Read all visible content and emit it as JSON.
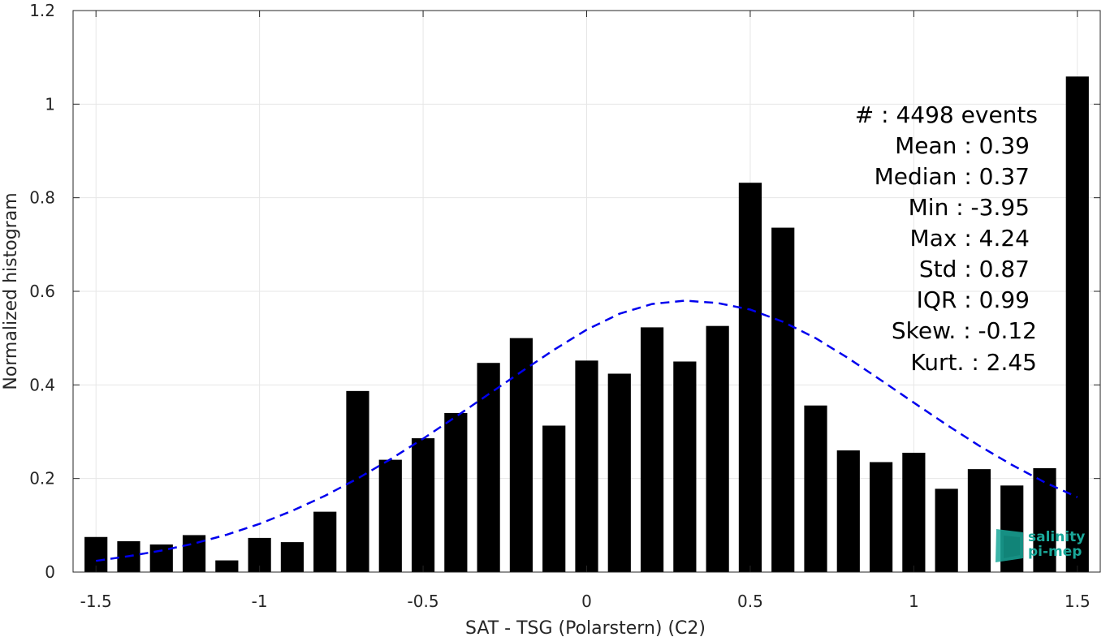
{
  "chart_data": {
    "type": "bar",
    "xlabel": "SAT - TSG (Polarstern) (C2)",
    "ylabel": "Normalized histogram",
    "xlim": [
      -1.57,
      1.57
    ],
    "ylim": [
      0,
      1.2
    ],
    "x_ticks": [
      -1.5,
      -1,
      -0.5,
      0,
      0.5,
      1,
      1.5
    ],
    "x_tick_labels": [
      "-1.5",
      "-1",
      "-0.5",
      "0",
      "0.5",
      "1",
      "1.5"
    ],
    "y_ticks": [
      0,
      0.2,
      0.4,
      0.6,
      0.8,
      1,
      1.2
    ],
    "y_tick_labels": [
      "0",
      "0.2",
      "0.4",
      "0.6",
      "0.8",
      "1",
      "1.2"
    ],
    "grid": true,
    "bar_width": 0.07,
    "bars": {
      "x": [
        -1.5,
        -1.4,
        -1.3,
        -1.2,
        -1.1,
        -1.0,
        -0.9,
        -0.8,
        -0.7,
        -0.6,
        -0.5,
        -0.4,
        -0.3,
        -0.2,
        -0.1,
        0.0,
        0.1,
        0.2,
        0.3,
        0.4,
        0.5,
        0.6,
        0.7,
        0.8,
        0.9,
        1.0,
        1.1,
        1.2,
        1.3,
        1.4,
        1.5
      ],
      "values": [
        0.075,
        0.066,
        0.059,
        0.079,
        0.025,
        0.073,
        0.064,
        0.129,
        0.387,
        0.24,
        0.286,
        0.34,
        0.447,
        0.5,
        0.313,
        0.452,
        0.424,
        0.523,
        0.45,
        0.526,
        0.832,
        0.736,
        0.356,
        0.26,
        0.235,
        0.255,
        0.178,
        0.22,
        0.185,
        0.222,
        1.059
      ],
      "color": "#000000"
    },
    "fit_curve": {
      "style": "dashed",
      "color": "#0000ee",
      "x": [
        -1.5,
        -1.4,
        -1.3,
        -1.2,
        -1.1,
        -1.0,
        -0.9,
        -0.8,
        -0.7,
        -0.6,
        -0.5,
        -0.4,
        -0.3,
        -0.2,
        -0.1,
        0.0,
        0.1,
        0.2,
        0.3,
        0.4,
        0.5,
        0.6,
        0.7,
        0.8,
        0.9,
        1.0,
        1.1,
        1.2,
        1.3,
        1.4,
        1.5
      ],
      "y": [
        0.024,
        0.034,
        0.046,
        0.061,
        0.08,
        0.103,
        0.131,
        0.163,
        0.2,
        0.241,
        0.285,
        0.332,
        0.38,
        0.428,
        0.475,
        0.518,
        0.552,
        0.573,
        0.58,
        0.575,
        0.561,
        0.535,
        0.5,
        0.457,
        0.41,
        0.362,
        0.315,
        0.27,
        0.229,
        0.192,
        0.16
      ]
    }
  },
  "stats": [
    {
      "text": "#  : 4498 events"
    },
    {
      "text": "Mean : 0.39"
    },
    {
      "text": "Median : 0.37"
    },
    {
      "text": "Min : -3.95"
    },
    {
      "text": "Max : 4.24"
    },
    {
      "text": "Std : 0.87"
    },
    {
      "text": "IQR : 0.99"
    },
    {
      "text": "Skew. : -0.12"
    },
    {
      "text": "Kurt. : 2.45"
    }
  ],
  "logo": {
    "line1": "salinity",
    "line2": "pi-mep",
    "color": "#1aa89a"
  }
}
